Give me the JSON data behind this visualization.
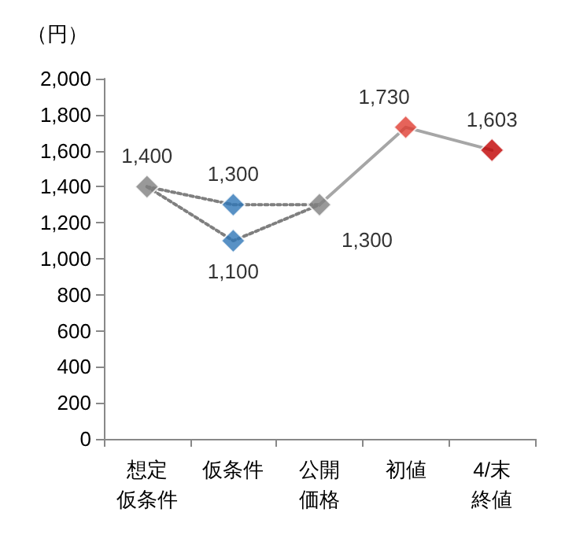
{
  "chart_data": {
    "type": "line",
    "ylabel": "（円）",
    "categories": [
      "想定仮条件",
      "仮条件",
      "公開価格",
      "初値",
      "4/末終値"
    ],
    "ylim": [
      0,
      2000
    ],
    "yticks": [
      {
        "value": 0,
        "label": "0"
      },
      {
        "value": 200,
        "label": "200"
      },
      {
        "value": 400,
        "label": "400"
      },
      {
        "value": 600,
        "label": "600"
      },
      {
        "value": 800,
        "label": "800"
      },
      {
        "value": 1000,
        "label": "1,000"
      },
      {
        "value": 1200,
        "label": "1,200"
      },
      {
        "value": 1400,
        "label": "1,400"
      },
      {
        "value": 1600,
        "label": "1,600"
      },
      {
        "value": 1800,
        "label": "1,800"
      },
      {
        "value": 2000,
        "label": "2,000"
      }
    ],
    "grid": false,
    "series": [
      {
        "line_style": "dotted",
        "marker": "none",
        "color": "#7f7f7f",
        "values": [
          1400,
          1300,
          1300,
          null,
          null
        ]
      },
      {
        "line_style": "dotted",
        "marker": "none",
        "color": "#7f7f7f",
        "values": [
          1400,
          1100,
          1300,
          null,
          null
        ]
      },
      {
        "line_style": "solid",
        "marker": "none",
        "color": "#a6a6a6",
        "values": [
          null,
          null,
          1300,
          1730,
          1603
        ]
      },
      {
        "type": "scatter",
        "marker": "diamond",
        "colors": [
          "#7f7f7f",
          "#2e75b6",
          "#7f7f7f",
          "#e03c31",
          "#c00000"
        ],
        "values": [
          1400,
          1300,
          1300,
          1730,
          1603
        ],
        "value_labels": [
          "1,400",
          "1,300",
          "1,300",
          "1,730",
          "1,603"
        ]
      },
      {
        "type": "scatter",
        "marker": "diamond",
        "colors": [
          null,
          "#2e75b6",
          null,
          null,
          null
        ],
        "values": [
          null,
          1100,
          null,
          null,
          null
        ],
        "value_labels": [
          null,
          "1,100",
          null,
          null,
          null
        ]
      }
    ]
  }
}
